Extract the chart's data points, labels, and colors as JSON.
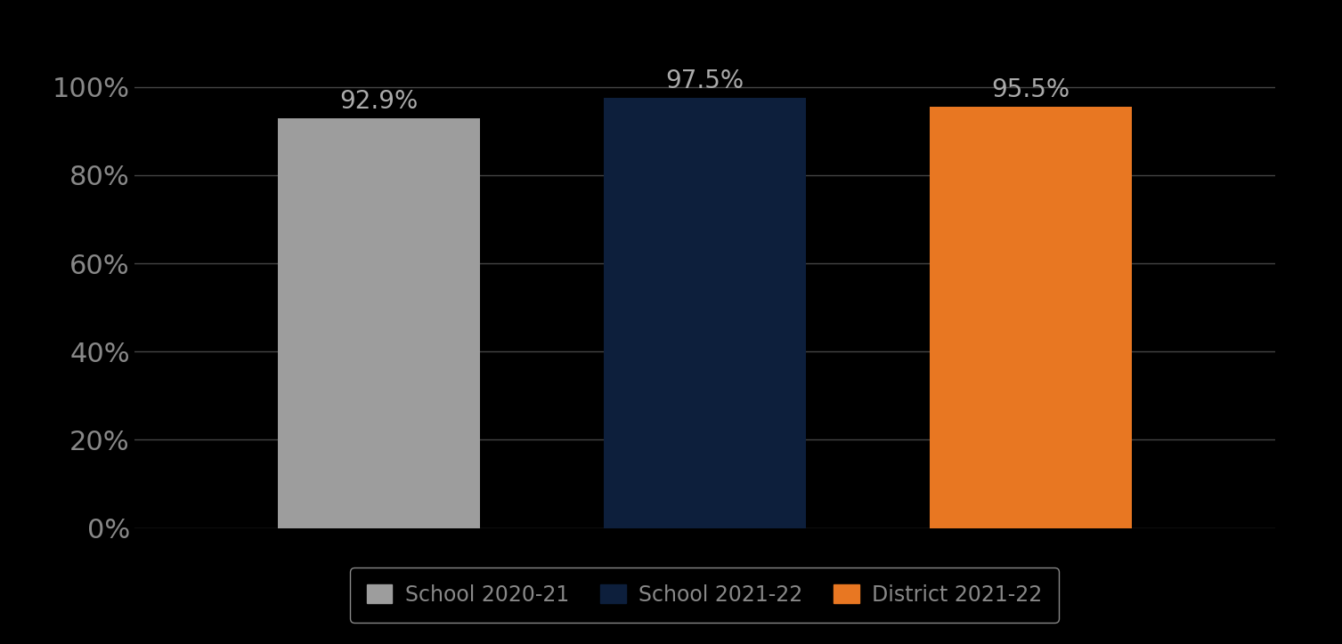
{
  "categories": [
    "School 2020-21",
    "School 2021-22",
    "District 2021-22"
  ],
  "values": [
    0.929,
    0.975,
    0.955
  ],
  "labels": [
    "92.9%",
    "97.5%",
    "95.5%"
  ],
  "bar_colors": [
    "#9d9d9d",
    "#0d1f3c",
    "#e87722"
  ],
  "background_color": "#000000",
  "text_color": "#888888",
  "label_color": "#aaaaaa",
  "ylim": [
    0,
    1.08
  ],
  "yticks": [
    0.0,
    0.2,
    0.4,
    0.6,
    0.8,
    1.0
  ],
  "ytick_labels": [
    "0%",
    "20%",
    "40%",
    "60%",
    "80%",
    "100%"
  ],
  "grid_color": "#444444",
  "legend_entries": [
    "School 2020-21",
    "School 2021-22",
    "District 2021-22"
  ],
  "bar_label_fontsize": 20,
  "tick_fontsize": 22,
  "legend_fontsize": 17
}
